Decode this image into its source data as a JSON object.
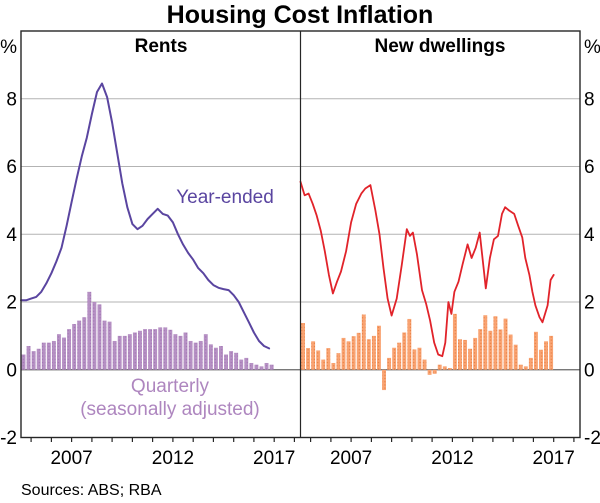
{
  "title": "Housing Cost Inflation",
  "footer": {
    "sources": "Sources: ABS; RBA"
  },
  "axis": {
    "unit_left": "%",
    "unit_right": "%",
    "ylim": [
      -2,
      10
    ],
    "y_ticks": [
      8,
      6,
      4,
      2,
      0,
      -2
    ],
    "y_gridlines": [
      0,
      2,
      4,
      6,
      8
    ],
    "x_start": 2005.0,
    "x_end": 2018.8,
    "x_minor_tick_start": 2005.5,
    "x_minor_tick_end": 2018.5,
    "x_label_positions": [
      2007.5,
      2012.5,
      2017.5
    ],
    "x_tick_labels": [
      "2007",
      "2012",
      "2017"
    ]
  },
  "colors": {
    "rents_line": "#5a45a0",
    "rents_bars": "#b691c4",
    "rents_bars_dot": "#a276b3",
    "rents_bar_label": "#ae86bf",
    "dwellings_line": "#e1232a",
    "dwellings_bars": "#f9a473",
    "dwellings_bars_dot": "#e87f42",
    "gridline": "#b3b3b3",
    "zero_line": "#666666",
    "frame": "#262626",
    "text": "#000000"
  },
  "chart_data": [
    {
      "type": "bar+line",
      "panel_title": "Rents",
      "unit": "%",
      "annotations": {
        "line_label": "Year-ended",
        "bar_label_line1": "Quarterly",
        "bar_label_line2": "(seasonally adjusted)"
      },
      "line_series": {
        "name": "Year-ended",
        "x": [
          2005.0,
          2005.25,
          2005.5,
          2005.75,
          2006.0,
          2006.25,
          2006.5,
          2006.75,
          2007.0,
          2007.25,
          2007.5,
          2007.75,
          2008.0,
          2008.25,
          2008.5,
          2008.75,
          2009.0,
          2009.25,
          2009.5,
          2009.75,
          2010.0,
          2010.25,
          2010.5,
          2010.75,
          2011.0,
          2011.25,
          2011.5,
          2011.75,
          2012.0,
          2012.25,
          2012.5,
          2012.75,
          2013.0,
          2013.25,
          2013.5,
          2013.75,
          2014.0,
          2014.25,
          2014.5,
          2014.75,
          2015.0,
          2015.25,
          2015.5,
          2015.75,
          2016.0,
          2016.25,
          2016.5,
          2016.75,
          2017.0,
          2017.25
        ],
        "values": [
          2.05,
          2.05,
          2.1,
          2.15,
          2.3,
          2.55,
          2.85,
          3.2,
          3.6,
          4.25,
          4.95,
          5.65,
          6.3,
          6.85,
          7.55,
          8.2,
          8.45,
          8.05,
          7.3,
          6.4,
          5.5,
          4.8,
          4.3,
          4.15,
          4.25,
          4.45,
          4.6,
          4.75,
          4.6,
          4.55,
          4.35,
          4.0,
          3.7,
          3.45,
          3.25,
          3.0,
          2.85,
          2.65,
          2.5,
          2.42,
          2.38,
          2.35,
          2.2,
          2.0,
          1.7,
          1.4,
          1.1,
          0.85,
          0.7,
          0.63
        ]
      },
      "bar_series": {
        "name": "Quarterly (seasonally adjusted)",
        "start": 2005.0,
        "interval": 0.25,
        "values": [
          0.45,
          0.7,
          0.55,
          0.62,
          0.8,
          0.8,
          0.85,
          1.05,
          0.95,
          1.2,
          1.35,
          1.45,
          1.55,
          2.3,
          2.0,
          1.93,
          1.45,
          1.42,
          0.85,
          1.0,
          1.0,
          1.05,
          1.1,
          1.15,
          1.2,
          1.2,
          1.2,
          1.25,
          1.25,
          1.18,
          1.05,
          1.0,
          1.1,
          0.85,
          0.8,
          0.85,
          1.05,
          0.75,
          0.65,
          0.7,
          0.45,
          0.55,
          0.5,
          0.3,
          0.35,
          0.2,
          0.15,
          0.1,
          0.2,
          0.15
        ]
      }
    },
    {
      "type": "bar+line",
      "panel_title": "New dwellings",
      "unit": "%",
      "annotations": {
        "line_label": "Year-ended",
        "bar_label_line1": "Quarterly",
        "bar_label_line2": "(seasonally adjusted)"
      },
      "line_series": {
        "name": "Year-ended",
        "x": [
          2005.0,
          2005.2,
          2005.4,
          2005.6,
          2005.8,
          2006.0,
          2006.2,
          2006.4,
          2006.6,
          2006.8,
          2007.0,
          2007.25,
          2007.5,
          2007.75,
          2008.0,
          2008.2,
          2008.45,
          2008.7,
          2008.9,
          2009.1,
          2009.3,
          2009.5,
          2009.75,
          2010.0,
          2010.25,
          2010.4,
          2010.55,
          2010.75,
          2011.0,
          2011.2,
          2011.4,
          2011.6,
          2011.8,
          2012.0,
          2012.15,
          2012.3,
          2012.45,
          2012.6,
          2012.8,
          2013.0,
          2013.25,
          2013.45,
          2013.65,
          2013.85,
          2014.05,
          2014.15,
          2014.35,
          2014.55,
          2014.75,
          2014.95,
          2015.1,
          2015.3,
          2015.55,
          2015.75,
          2015.95,
          2016.1,
          2016.3,
          2016.45,
          2016.6,
          2016.8,
          2016.95,
          2017.2,
          2017.35,
          2017.5
        ],
        "values": [
          5.55,
          5.15,
          5.2,
          4.9,
          4.55,
          4.1,
          3.5,
          2.8,
          2.25,
          2.6,
          2.9,
          3.5,
          4.35,
          4.9,
          5.2,
          5.35,
          5.45,
          4.7,
          4.0,
          3.0,
          2.1,
          1.6,
          2.1,
          3.1,
          4.15,
          3.95,
          4.05,
          3.4,
          2.35,
          1.95,
          1.45,
          0.8,
          0.45,
          0.4,
          0.8,
          2.0,
          1.65,
          2.3,
          2.6,
          3.1,
          3.7,
          3.3,
          3.6,
          4.05,
          2.95,
          2.4,
          3.3,
          3.85,
          3.95,
          4.6,
          4.8,
          4.7,
          4.6,
          4.25,
          3.9,
          3.3,
          2.8,
          2.3,
          1.9,
          1.55,
          1.4,
          1.9,
          2.65,
          2.8
        ]
      },
      "bar_series": {
        "name": "Quarterly (seasonally adjusted)",
        "start": 2005.0,
        "interval": 0.25,
        "values": [
          1.38,
          0.64,
          0.84,
          0.57,
          0.3,
          0.64,
          0.2,
          0.49,
          0.94,
          0.84,
          0.99,
          1.09,
          1.63,
          0.9,
          1.0,
          1.3,
          -0.6,
          0.35,
          0.65,
          0.8,
          1.1,
          1.5,
          0.6,
          0.65,
          0.3,
          -0.15,
          -0.12,
          0.15,
          0.1,
          0.05,
          1.65,
          0.9,
          0.88,
          0.62,
          0.94,
          1.2,
          1.61,
          1.15,
          1.58,
          1.19,
          1.51,
          1.04,
          0.74,
          0.15,
          0.1,
          0.35,
          1.12,
          0.59,
          0.84,
          1.0
        ]
      }
    }
  ]
}
